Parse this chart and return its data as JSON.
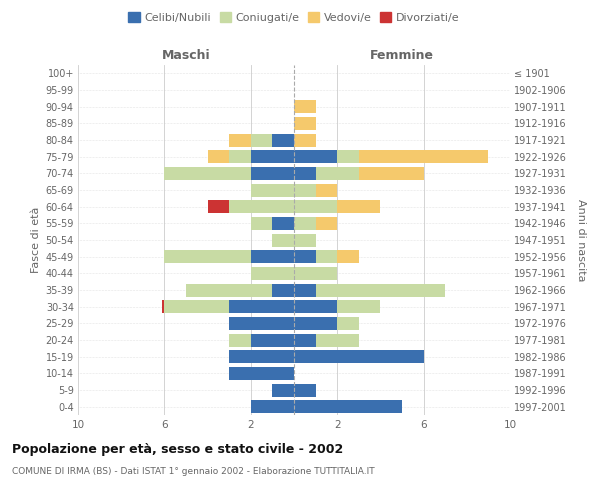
{
  "age_groups": [
    "0-4",
    "5-9",
    "10-14",
    "15-19",
    "20-24",
    "25-29",
    "30-34",
    "35-39",
    "40-44",
    "45-49",
    "50-54",
    "55-59",
    "60-64",
    "65-69",
    "70-74",
    "75-79",
    "80-84",
    "85-89",
    "90-94",
    "95-99",
    "100+"
  ],
  "birth_years": [
    "1997-2001",
    "1992-1996",
    "1987-1991",
    "1982-1986",
    "1977-1981",
    "1972-1976",
    "1967-1971",
    "1962-1966",
    "1957-1961",
    "1952-1956",
    "1947-1951",
    "1942-1946",
    "1937-1941",
    "1932-1936",
    "1927-1931",
    "1922-1926",
    "1917-1921",
    "1912-1916",
    "1907-1911",
    "1902-1906",
    "≤ 1901"
  ],
  "colors": {
    "celibi": "#3a6faf",
    "coniugati": "#c8dba4",
    "vedovi": "#f5c96c",
    "divorziati": "#cc3333"
  },
  "maschi": {
    "celibi": [
      2,
      1,
      3,
      3,
      2,
      3,
      3,
      1,
      0,
      2,
      0,
      1,
      0,
      0,
      2,
      2,
      1,
      0,
      0,
      0,
      0
    ],
    "coniugati": [
      0,
      0,
      0,
      0,
      1,
      0,
      3,
      4,
      2,
      4,
      1,
      1,
      3,
      2,
      4,
      1,
      1,
      0,
      0,
      0,
      0
    ],
    "vedovi": [
      0,
      0,
      0,
      0,
      0,
      0,
      0,
      0,
      0,
      0,
      0,
      0,
      0,
      0,
      0,
      1,
      1,
      0,
      0,
      0,
      0
    ],
    "divorziati": [
      0,
      0,
      0,
      0,
      0,
      0,
      0.1,
      0,
      0,
      0,
      0,
      0,
      1,
      0,
      0,
      0,
      0,
      0,
      0,
      0,
      0
    ]
  },
  "femmine": {
    "celibi": [
      5,
      1,
      0,
      6,
      1,
      2,
      2,
      1,
      0,
      1,
      0,
      0,
      0,
      0,
      1,
      2,
      0,
      0,
      0,
      0,
      0
    ],
    "coniugati": [
      0,
      0,
      0,
      0,
      2,
      1,
      2,
      6,
      2,
      1,
      1,
      1,
      2,
      1,
      2,
      1,
      0,
      0,
      0,
      0,
      0
    ],
    "vedovi": [
      0,
      0,
      0,
      0,
      0,
      0,
      0,
      0,
      0,
      1,
      0,
      1,
      2,
      1,
      3,
      6,
      1,
      1,
      1,
      0,
      0
    ],
    "divorziati": [
      0,
      0,
      0,
      0,
      0,
      0,
      0,
      0,
      0,
      0,
      0,
      0,
      0,
      0,
      0,
      0,
      0,
      0,
      0,
      0,
      0
    ]
  },
  "title": "Popolazione per età, sesso e stato civile - 2002",
  "subtitle": "COMUNE DI IRMA (BS) - Dati ISTAT 1° gennaio 2002 - Elaborazione TUTTITALIA.IT",
  "xlabel_left": "Maschi",
  "xlabel_right": "Femmine",
  "ylabel_left": "Fasce di età",
  "ylabel_right": "Anni di nascita",
  "xlim": 10,
  "xtick_positions": [
    -10,
    -6,
    -2,
    2,
    6,
    10
  ],
  "xtick_labels": [
    "10",
    "6",
    "2",
    "2",
    "6",
    "10"
  ],
  "legend_labels": [
    "Celibi/Nubili",
    "Coniugati/e",
    "Vedovi/e",
    "Divorziati/e"
  ],
  "bg_color": "#ffffff",
  "grid_color": "#cccccc",
  "text_color": "#666666",
  "title_color": "#111111"
}
